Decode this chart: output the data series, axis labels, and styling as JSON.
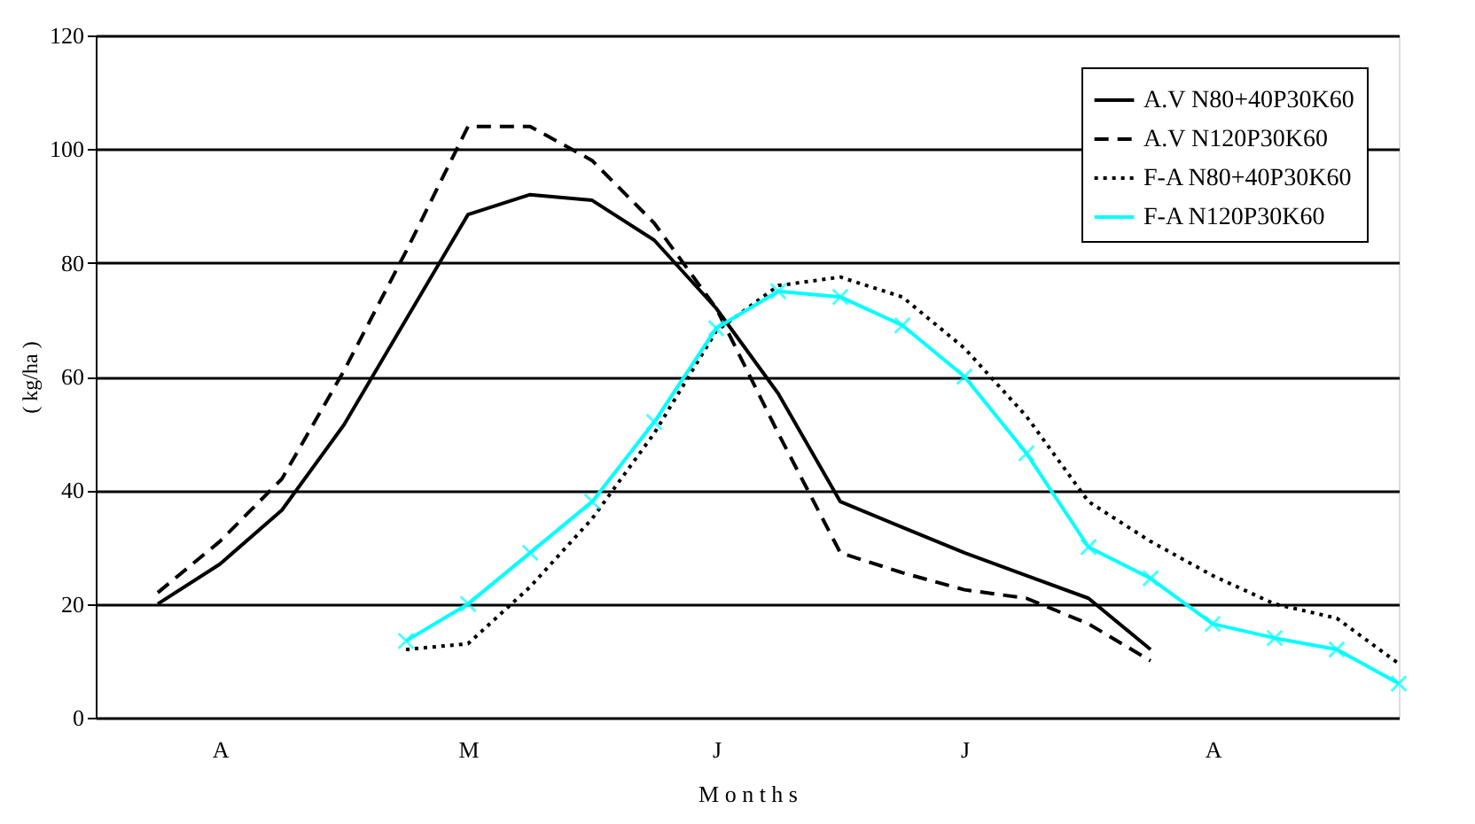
{
  "chart_data": {
    "type": "line",
    "xlabel": "M o n t h s",
    "ylabel": "( kg/ha )",
    "categories": [
      null,
      "A",
      null,
      null,
      null,
      "M",
      null,
      null,
      null,
      "J",
      null,
      null,
      null,
      "J",
      null,
      null,
      null,
      "A",
      null,
      null,
      null
    ],
    "ylim": [
      0,
      120
    ],
    "yticks": [
      0,
      20,
      40,
      60,
      80,
      100,
      120
    ],
    "grid": "y",
    "legend": "top right",
    "series": [
      {
        "name": "A.V N80+40P30K60",
        "color": "#000000",
        "line_style": "solid",
        "marker": "none",
        "values": [
          20,
          27,
          36.5,
          51.5,
          70,
          88.5,
          92,
          91,
          84,
          72,
          57,
          38,
          33.5,
          29,
          25,
          21,
          12,
          null,
          null,
          null,
          null
        ]
      },
      {
        "name": "A.V  N120P30K60",
        "color": "#000000",
        "line_style": "dashed",
        "marker": "none",
        "values": [
          22,
          31,
          42,
          61,
          82,
          104,
          104,
          98,
          87,
          72,
          50,
          29,
          25.5,
          22.5,
          21,
          16.5,
          10,
          null,
          null,
          null,
          null
        ]
      },
      {
        "name": "F-A N80+40P30K60",
        "color": "#000000",
        "line_style": "dotted",
        "marker": "none",
        "values": [
          null,
          null,
          null,
          null,
          12,
          13,
          23,
          35,
          50,
          68,
          76,
          77.5,
          74,
          65,
          53,
          38,
          31,
          25,
          20,
          17.5,
          9.5
        ]
      },
      {
        "name": "F-A N120P30K60",
        "color": "#00ffff",
        "line_style": "solid",
        "marker": "cross",
        "values": [
          null,
          null,
          null,
          null,
          13.5,
          20,
          29,
          38,
          52,
          68.5,
          75,
          74,
          69,
          60,
          46.5,
          30,
          24.5,
          16.5,
          14,
          12,
          6
        ]
      }
    ]
  }
}
